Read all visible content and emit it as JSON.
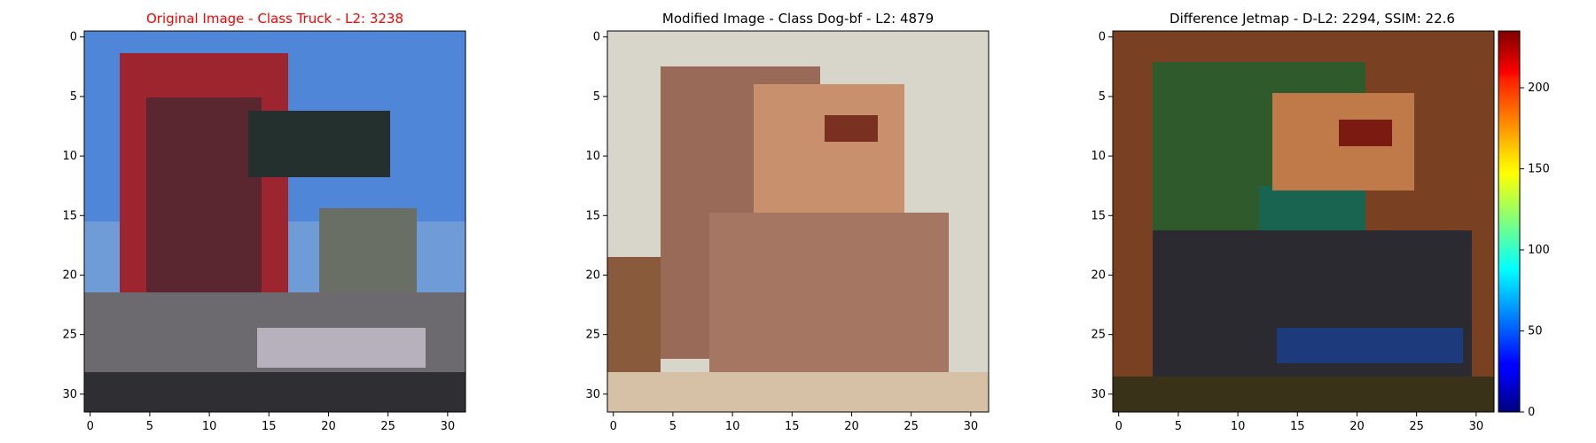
{
  "chart_data": [
    {
      "type": "heatmap",
      "title": "Original Image - Class Truck - L2: 3238",
      "title_color": "#ff0000",
      "xlim": [
        -0.5,
        31.5
      ],
      "ylim": [
        31.5,
        -0.5
      ],
      "xticks": [
        0,
        5,
        10,
        15,
        20,
        25,
        30
      ],
      "yticks": [
        0,
        5,
        10,
        15,
        20,
        25,
        30
      ],
      "grid": false
    },
    {
      "type": "heatmap",
      "title": "Modified Image - Class Dog-bf - L2: 4879",
      "title_color": "#000000",
      "xlim": [
        -0.5,
        31.5
      ],
      "ylim": [
        31.5,
        -0.5
      ],
      "xticks": [
        0,
        5,
        10,
        15,
        20,
        25,
        30
      ],
      "yticks": [
        0,
        5,
        10,
        15,
        20,
        25,
        30
      ],
      "grid": false
    },
    {
      "type": "heatmap",
      "title": "Difference Jetmap - D-L2: 2294, SSIM: 22.6",
      "title_color": "#000000",
      "xlim": [
        -0.5,
        31.5
      ],
      "ylim": [
        31.5,
        -0.5
      ],
      "xticks": [
        0,
        5,
        10,
        15,
        20,
        25,
        30
      ],
      "yticks": [
        0,
        5,
        10,
        15,
        20,
        25,
        30
      ],
      "grid": false,
      "colorbar": {
        "colormap": "jet",
        "range": [
          0,
          235
        ],
        "ticks": [
          0,
          50,
          100,
          150,
          200
        ]
      }
    }
  ]
}
